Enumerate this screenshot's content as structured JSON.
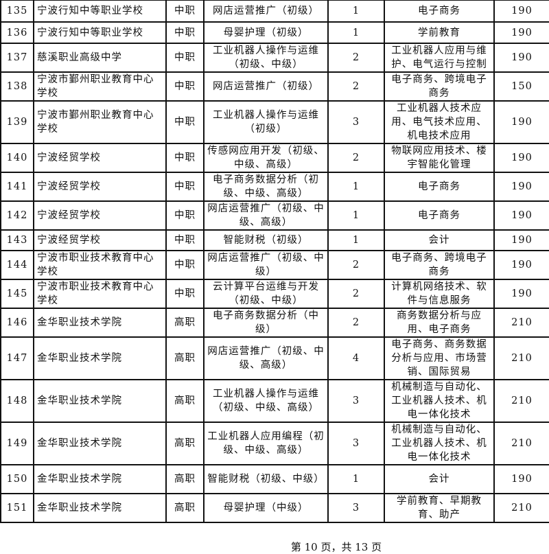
{
  "rows": [
    {
      "no": "135",
      "school": "宁波行知中等职业学校",
      "level": "中职",
      "cert": "网店运营推广（初级）",
      "count": "1",
      "major": "电子商务",
      "price": "190"
    },
    {
      "no": "136",
      "school": "宁波行知中等职业学校",
      "level": "中职",
      "cert": "母婴护理（初级）",
      "count": "1",
      "major": "学前教育",
      "price": "190"
    },
    {
      "no": "137",
      "school": "慈溪职业高级中学",
      "level": "中职",
      "cert": "工业机器人操作与运维（初级、中级）",
      "count": "2",
      "major": "工业机器人应用与维护、电气运行与控制",
      "price": "190"
    },
    {
      "no": "138",
      "school": "宁波市鄞州职业教育中心学校",
      "level": "中职",
      "cert": "网店运营推广（初级）",
      "count": "2",
      "major": "电子商务、跨境电子商务",
      "price": "150"
    },
    {
      "no": "139",
      "school": "宁波市鄞州职业教育中心学校",
      "level": "中职",
      "cert": "工业机器人操作与运维（初级）",
      "count": "3",
      "major": "工业机器人技术应用、电气技术应用、机电技术应用",
      "price": "190"
    },
    {
      "no": "140",
      "school": "宁波经贸学校",
      "level": "中职",
      "cert": "传感网应用开发（初级、中级、高级）",
      "count": "2",
      "major": "物联网应用技术、楼宇智能化管理",
      "price": "190"
    },
    {
      "no": "141",
      "school": "宁波经贸学校",
      "level": "中职",
      "cert": "电子商务数据分析（初级、中级、高级）",
      "count": "1",
      "major": "电子商务",
      "price": "190"
    },
    {
      "no": "142",
      "school": "宁波经贸学校",
      "level": "中职",
      "cert": "网店运营推广（初级、中级、高级）",
      "count": "1",
      "major": "电子商务",
      "price": "190"
    },
    {
      "no": "143",
      "school": "宁波经贸学校",
      "level": "中职",
      "cert": "智能财税（初级）",
      "count": "1",
      "major": "会计",
      "price": "190"
    },
    {
      "no": "144",
      "school": "宁波市职业技术教育中心学校",
      "level": "中职",
      "cert": "网店运营推广（初级、中级）",
      "count": "2",
      "major": "电子商务、跨境电子商务",
      "price": "190"
    },
    {
      "no": "145",
      "school": "宁波市职业技术教育中心学校",
      "level": "中职",
      "cert": "云计算平台运维与开发（初级、中级）",
      "count": "2",
      "major": "计算机网络技术、软件与信息服务",
      "price": "190"
    },
    {
      "no": "146",
      "school": "金华职业技术学院",
      "level": "高职",
      "cert": "电子商务数据分析（中级）",
      "count": "2",
      "major": "商务数据分析与应用、电子商务",
      "price": "210"
    },
    {
      "no": "147",
      "school": "金华职业技术学院",
      "level": "高职",
      "cert": "网店运营推广（初级、中级、高级）",
      "count": "4",
      "major": "电子商务、商务数据分析与应用、市场营销、国际贸易",
      "price": "210"
    },
    {
      "no": "148",
      "school": "金华职业技术学院",
      "level": "高职",
      "cert": "工业机器人操作与运维（初级、中级、高级）",
      "count": "3",
      "major": "机械制造与自动化、工业机器人技术、机电一体化技术",
      "price": "210"
    },
    {
      "no": "149",
      "school": "金华职业技术学院",
      "level": "高职",
      "cert": "工业机器人应用编程（初级、中级、高级）",
      "count": "3",
      "major": "机械制造与自动化、工业机器人技术、机电一体化技术",
      "price": "210"
    },
    {
      "no": "150",
      "school": "金华职业技术学院",
      "level": "高职",
      "cert": "智能财税（初级、中级）",
      "count": "1",
      "major": "会计",
      "price": "190"
    },
    {
      "no": "151",
      "school": "金华职业技术学院",
      "level": "高职",
      "cert": "母婴护理（中级）",
      "count": "3",
      "major": "学前教育、早期教育、助产",
      "price": "210"
    }
  ],
  "footer": "第 10 页，共 13 页"
}
